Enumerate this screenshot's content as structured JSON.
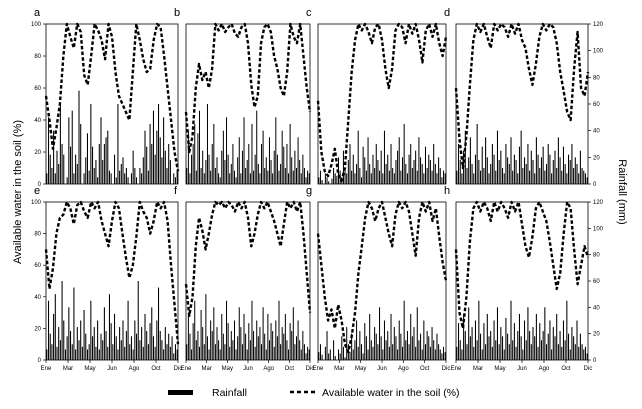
{
  "chart_data": {
    "type": "bar+line",
    "ylabel_left": "Available water in the soil (%)",
    "ylabel_right": "Rainfall (mm)",
    "ylim_left": [
      0,
      100
    ],
    "ylim_right": [
      0,
      120
    ],
    "left_ticks": [
      "0",
      "20",
      "40",
      "60",
      "80",
      "100"
    ],
    "right_ticks": [
      "0",
      "20",
      "40",
      "60",
      "80",
      "100",
      "120"
    ],
    "x_ticks": [
      "Ene",
      "Mar",
      "May",
      "Jun",
      "Ago",
      "Oct",
      "Dic"
    ],
    "grid": false,
    "legend": {
      "placement": "bottom",
      "items": [
        {
          "label": "Rainfall",
          "style": "bar"
        },
        {
          "label": "Available water in the soil (%)",
          "style": "dashed-line"
        }
      ]
    },
    "panels": [
      {
        "label": "a",
        "water_pct": [
          55,
          40,
          22,
          35,
          50,
          80,
          100,
          92,
          85,
          100,
          95,
          68,
          62,
          80,
          100,
          96,
          90,
          78,
          100,
          92,
          70,
          55,
          50,
          45,
          40,
          70,
          100,
          90,
          78,
          70,
          72,
          90,
          100,
          98,
          80,
          60,
          40,
          20,
          8
        ],
        "rainfall_mm": [
          8,
          50,
          22,
          12,
          40,
          8,
          25,
          15,
          60,
          30,
          22,
          0,
          5,
          50,
          28,
          55,
          8,
          22,
          15,
          70,
          45,
          0,
          8,
          20,
          38,
          10,
          60,
          28,
          12,
          18,
          5,
          30,
          50,
          18,
          30,
          35,
          40,
          10,
          8,
          0,
          22,
          5,
          60,
          10,
          15,
          20,
          8,
          12,
          5,
          0,
          8,
          25,
          12,
          5,
          0,
          12,
          8,
          20,
          40,
          28,
          10,
          45,
          30,
          55,
          22,
          40,
          60,
          35,
          20,
          50,
          25,
          12,
          30,
          18,
          0,
          8,
          5,
          10
        ]
      },
      {
        "label": "b",
        "water_pct": [
          45,
          20,
          30,
          60,
          75,
          65,
          70,
          60,
          72,
          100,
          96,
          100,
          95,
          98,
          100,
          94,
          92,
          98,
          100,
          88,
          62,
          48,
          55,
          88,
          98,
          100,
          95,
          80,
          72,
          60,
          55,
          70,
          100,
          92,
          88,
          100,
          80,
          60,
          45
        ],
        "rainfall_mm": [
          12,
          40,
          8,
          22,
          30,
          45,
          10,
          38,
          55,
          12,
          25,
          8,
          18,
          60,
          22,
          10,
          30,
          45,
          12,
          20,
          8,
          5,
          25,
          40,
          18,
          50,
          22,
          8,
          15,
          30,
          10,
          5,
          20,
          35,
          8,
          25,
          50,
          12,
          18,
          30,
          8,
          45,
          10,
          22,
          55,
          15,
          8,
          30,
          40,
          12,
          20,
          10,
          35,
          18,
          8,
          25,
          50,
          22,
          10,
          15,
          40,
          28,
          12,
          30,
          8,
          45,
          20,
          10,
          25,
          12,
          35,
          18,
          8,
          22,
          12,
          5,
          10,
          8
        ]
      },
      {
        "label": "c",
        "water_pct": [
          52,
          20,
          8,
          5,
          12,
          22,
          6,
          2,
          10,
          40,
          70,
          90,
          100,
          96,
          100,
          95,
          88,
          98,
          100,
          90,
          72,
          60,
          72,
          96,
          100,
          98,
          88,
          100,
          94,
          100,
          90,
          76,
          96,
          100,
          92,
          100,
          88,
          80,
          92
        ],
        "rainfall_mm": [
          5,
          10,
          3,
          0,
          8,
          5,
          2,
          0,
          4,
          12,
          8,
          6,
          20,
          10,
          5,
          25,
          12,
          8,
          18,
          30,
          10,
          22,
          8,
          15,
          40,
          12,
          5,
          28,
          20,
          10,
          35,
          15,
          8,
          22,
          12,
          30,
          18,
          10,
          25,
          8,
          40,
          15,
          22,
          10,
          30,
          12,
          8,
          18,
          25,
          35,
          10,
          20,
          45,
          15,
          8,
          22,
          30,
          12,
          18,
          25,
          10,
          35,
          20,
          15,
          8,
          28,
          12,
          22,
          18,
          10,
          30,
          15,
          8,
          20,
          12,
          5,
          10,
          8
        ]
      },
      {
        "label": "d",
        "water_pct": [
          60,
          28,
          10,
          30,
          62,
          90,
          100,
          95,
          100,
          92,
          85,
          100,
          96,
          100,
          98,
          92,
          100,
          94,
          100,
          90,
          85,
          72,
          62,
          75,
          92,
          100,
          96,
          100,
          98,
          88,
          70,
          58,
          45,
          40,
          72,
          95,
          60,
          55,
          70
        ],
        "rainfall_mm": [
          10,
          30,
          18,
          8,
          25,
          40,
          12,
          20,
          35,
          15,
          8,
          22,
          45,
          18,
          10,
          28,
          12,
          35,
          20,
          8,
          15,
          30,
          22,
          10,
          40,
          18,
          25,
          12,
          8,
          30,
          20,
          15,
          35,
          10,
          22,
          18,
          8,
          28,
          40,
          12,
          20,
          15,
          30,
          10,
          25,
          18,
          8,
          35,
          22,
          12,
          20,
          28,
          10,
          15,
          30,
          22,
          8,
          18,
          25,
          12,
          35,
          20,
          10,
          28,
          15,
          8,
          22,
          18,
          30,
          12,
          20,
          15,
          8,
          25,
          12,
          10,
          8,
          5
        ]
      },
      {
        "label": "e",
        "water_pct": [
          70,
          45,
          58,
          80,
          90,
          92,
          100,
          96,
          86,
          98,
          100,
          94,
          90,
          100,
          96,
          100,
          88,
          80,
          72,
          88,
          100,
          96,
          80,
          65,
          52,
          60,
          78,
          100,
          94,
          90,
          80,
          88,
          100,
          96,
          100,
          88,
          60,
          35,
          10
        ],
        "rainfall_mm": [
          8,
          45,
          20,
          12,
          35,
          50,
          10,
          25,
          15,
          60,
          30,
          8,
          18,
          40,
          22,
          12,
          55,
          8,
          25,
          15,
          30,
          10,
          38,
          20,
          8,
          12,
          45,
          18,
          25,
          10,
          30,
          8,
          20,
          15,
          40,
          22,
          10,
          50,
          28,
          12,
          35,
          18,
          8,
          25,
          15,
          30,
          10,
          22,
          45,
          12,
          18,
          8,
          30,
          20,
          60,
          15,
          25,
          10,
          35,
          22,
          12,
          28,
          40,
          18,
          10,
          30,
          55,
          22,
          15,
          8,
          25,
          12,
          20,
          10,
          18,
          5,
          12,
          8
        ]
      },
      {
        "label": "f",
        "water_pct": [
          48,
          28,
          40,
          72,
          90,
          82,
          70,
          80,
          92,
          100,
          98,
          100,
          96,
          100,
          98,
          94,
          100,
          96,
          100,
          90,
          72,
          80,
          92,
          100,
          96,
          100,
          94,
          88,
          80,
          72,
          86,
          100,
          96,
          100,
          94,
          100,
          80,
          55,
          30
        ],
        "rainfall_mm": [
          12,
          35,
          20,
          8,
          28,
          45,
          15,
          22,
          10,
          38,
          25,
          12,
          50,
          18,
          8,
          30,
          22,
          40,
          12,
          25,
          15,
          8,
          35,
          20,
          12,
          45,
          28,
          10,
          22,
          15,
          30,
          8,
          18,
          40,
          25,
          12,
          35,
          20,
          8,
          28,
          15,
          45,
          22,
          10,
          30,
          18,
          25,
          12,
          40,
          20,
          8,
          35,
          15,
          28,
          22,
          10,
          30,
          18,
          45,
          12,
          25,
          20,
          35,
          15,
          8,
          28,
          22,
          40,
          12,
          18,
          30,
          15,
          8,
          22,
          12,
          5,
          10,
          8
        ]
      },
      {
        "label": "g",
        "water_pct": [
          80,
          60,
          40,
          25,
          32,
          20,
          35,
          25,
          10,
          5,
          15,
          30,
          55,
          72,
          90,
          100,
          96,
          88,
          96,
          100,
          90,
          80,
          72,
          92,
          100,
          96,
          100,
          94,
          80,
          66,
          90,
          100,
          94,
          100,
          88,
          96,
          78,
          62,
          50
        ],
        "rainfall_mm": [
          6,
          12,
          4,
          0,
          10,
          22,
          5,
          8,
          0,
          15,
          3,
          0,
          8,
          5,
          18,
          10,
          2,
          25,
          12,
          6,
          20,
          8,
          15,
          30,
          10,
          22,
          12,
          5,
          28,
          18,
          8,
          35,
          15,
          10,
          25,
          20,
          12,
          40,
          18,
          8,
          30,
          15,
          22,
          10,
          35,
          12,
          25,
          18,
          8,
          30,
          20,
          10,
          45,
          15,
          22,
          12,
          35,
          18,
          25,
          10,
          40,
          15,
          20,
          8,
          30,
          12,
          22,
          18,
          10,
          25,
          15,
          8,
          20,
          12,
          8,
          5,
          10,
          6
        ]
      },
      {
        "label": "h",
        "water_pct": [
          70,
          30,
          20,
          40,
          75,
          96,
          100,
          94,
          100,
          96,
          88,
          100,
          94,
          100,
          96,
          90,
          100,
          94,
          100,
          86,
          72,
          65,
          78,
          96,
          100,
          94,
          88,
          75,
          60,
          45,
          55,
          80,
          100,
          96,
          70,
          48,
          60,
          72,
          65
        ],
        "rainfall_mm": [
          10,
          28,
          15,
          8,
          35,
          22,
          12,
          40,
          18,
          25,
          10,
          30,
          15,
          45,
          20,
          8,
          28,
          12,
          35,
          18,
          22,
          10,
          30,
          15,
          40,
          12,
          25,
          18,
          8,
          32,
          20,
          12,
          45,
          15,
          28,
          10,
          22,
          35,
          18,
          8,
          30,
          15,
          40,
          22,
          12,
          25,
          18,
          35,
          10,
          28,
          15,
          22,
          40,
          12,
          20,
          30,
          8,
          25,
          18,
          35,
          12,
          22,
          10,
          30,
          15,
          45,
          20,
          8,
          25,
          18,
          12,
          30,
          10,
          20,
          12,
          8,
          10,
          5
        ]
      }
    ]
  }
}
